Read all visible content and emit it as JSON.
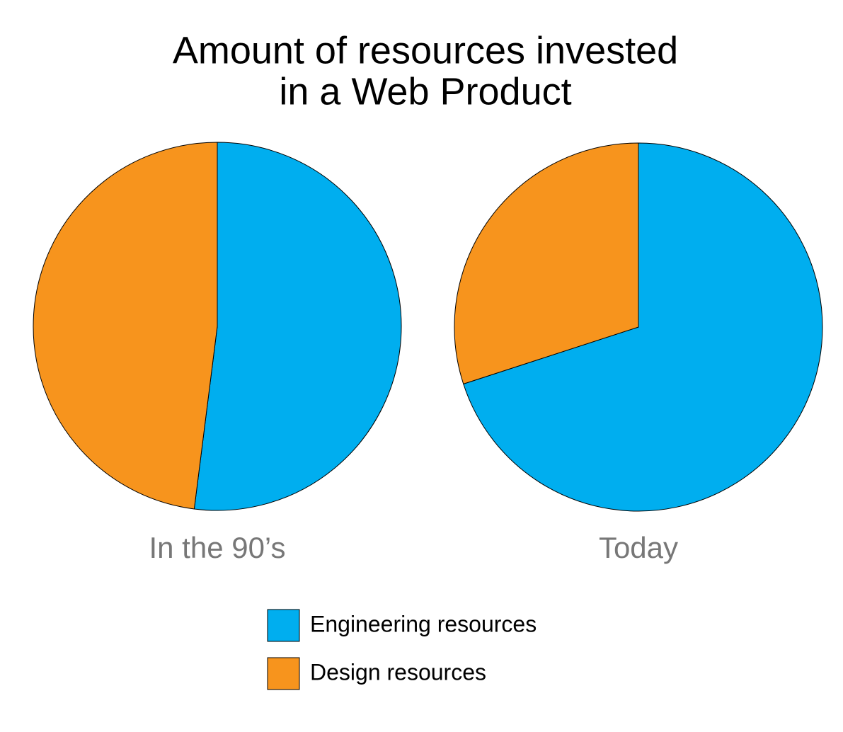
{
  "title_lines": [
    "Amount of resources invested",
    "in a Web Product"
  ],
  "legend": [
    {
      "name": "Engineering resources",
      "color": "#00aeef"
    },
    {
      "name": "Design resources",
      "color": "#f7941d"
    }
  ],
  "chart_data": [
    {
      "type": "pie",
      "label": "In the 90’s",
      "values": [
        52,
        48
      ]
    },
    {
      "type": "pie",
      "label": "Today",
      "values": [
        70,
        30
      ]
    }
  ]
}
